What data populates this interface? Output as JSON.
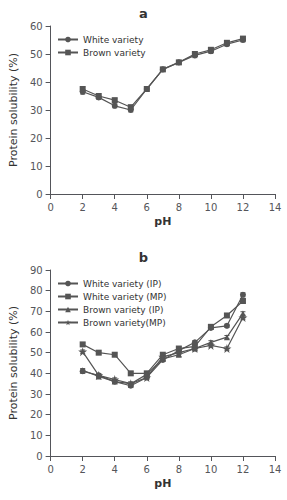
{
  "chart_data": [
    {
      "type": "line",
      "title": "a",
      "xlabel": "pH",
      "ylabel": "Protein solubility (%)",
      "x": [
        2,
        3,
        4,
        5,
        6,
        7,
        8,
        9,
        10,
        11,
        12
      ],
      "series": [
        {
          "name": "White variety",
          "color": "#555555",
          "marker": "circle",
          "values": [
            36.5,
            34.5,
            31.5,
            30.0,
            37.5,
            44.5,
            47.0,
            49.5,
            51.0,
            53.5,
            55.0
          ],
          "error": [
            0.8,
            0.7,
            0.7,
            0.7,
            0.7,
            0.7,
            0.7,
            0.8,
            0.8,
            0.7,
            0.7
          ]
        },
        {
          "name": "Brown variety",
          "color": "#555555",
          "marker": "square",
          "values": [
            37.5,
            35.0,
            33.5,
            31.0,
            37.5,
            44.5,
            47.0,
            50.0,
            51.5,
            54.0,
            55.5
          ],
          "error": [
            0.8,
            0.7,
            0.7,
            0.7,
            0.7,
            0.7,
            0.7,
            0.8,
            0.8,
            0.7,
            0.7
          ]
        }
      ],
      "xlim": [
        0,
        14
      ],
      "xticks": [
        0,
        2,
        4,
        6,
        8,
        10,
        12,
        14
      ],
      "ylim": [
        0,
        60
      ],
      "yticks": [
        0,
        10,
        20,
        30,
        40,
        50,
        60
      ],
      "grid": false,
      "legend": "upper left"
    },
    {
      "type": "line",
      "title": "b",
      "xlabel": "pH",
      "ylabel": "Protein solubility (%)",
      "x": [
        2,
        3,
        4,
        5,
        6,
        7,
        8,
        9,
        10,
        11,
        12
      ],
      "series": [
        {
          "name": "White variety (IP)",
          "color": "#555555",
          "marker": "circle",
          "values": [
            41.0,
            39.0,
            36.0,
            34.0,
            38.0,
            46.5,
            51.0,
            55.0,
            62.0,
            63.0,
            78.0
          ],
          "error": [
            1.0,
            0.8,
            0.8,
            0.8,
            0.8,
            0.8,
            0.8,
            0.8,
            0.8,
            0.8,
            1.0
          ]
        },
        {
          "name": "White variety (MP)",
          "color": "#555555",
          "marker": "square",
          "values": [
            54.0,
            50.0,
            49.0,
            40.0,
            40.0,
            49.0,
            52.0,
            53.0,
            62.5,
            68.0,
            75.0
          ],
          "error": [
            0.8,
            0.8,
            0.8,
            0.8,
            0.8,
            0.8,
            0.8,
            0.8,
            0.8,
            0.8,
            0.8
          ]
        },
        {
          "name": "Brown variety (IP)",
          "color": "#555555",
          "marker": "triangle",
          "values": [
            41.5,
            38.5,
            36.0,
            35.0,
            39.5,
            47.0,
            49.0,
            52.0,
            55.0,
            57.5,
            69.0
          ],
          "error": [
            0.8,
            0.8,
            0.8,
            0.8,
            0.8,
            0.8,
            0.8,
            0.8,
            0.8,
            0.8,
            0.8
          ]
        },
        {
          "name": "Brown variety(MP)",
          "color": "#555555",
          "marker": "star",
          "values": [
            50.5,
            39.0,
            37.0,
            35.0,
            38.0,
            48.0,
            50.0,
            52.0,
            53.5,
            52.0,
            67.0
          ],
          "error": [
            0.8,
            0.8,
            0.8,
            0.8,
            0.8,
            0.8,
            0.8,
            0.8,
            0.8,
            0.8,
            0.8
          ]
        }
      ],
      "xlim": [
        0,
        14
      ],
      "xticks": [
        0,
        2,
        4,
        6,
        8,
        10,
        12,
        14
      ],
      "ylim": [
        0,
        90
      ],
      "yticks": [
        0,
        10,
        20,
        30,
        40,
        50,
        60,
        70,
        80,
        90
      ],
      "grid": false,
      "legend": "upper left"
    }
  ]
}
